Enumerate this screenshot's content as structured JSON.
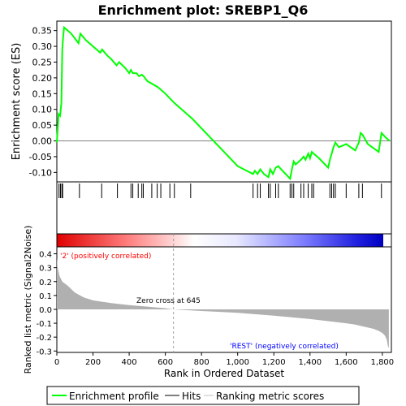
{
  "chart_data": [
    {
      "type": "line",
      "panel": "enrichment",
      "title": "Enrichment plot: SREBP1_Q6",
      "ylabel": "Enrichment score (ES)",
      "xlim": [
        0,
        1850
      ],
      "ylim": [
        -0.13,
        0.38
      ],
      "yticks": [
        "0.35",
        "0.30",
        "0.25",
        "0.20",
        "0.15",
        "0.10",
        "0.05",
        "0.00",
        "-0.05",
        "-0.10"
      ],
      "ytick_values": [
        0.35,
        0.3,
        0.25,
        0.2,
        0.15,
        0.1,
        0.05,
        0.0,
        -0.05,
        -0.1
      ],
      "series": [
        {
          "name": "Enrichment profile",
          "color": "#00ff00",
          "x": [
            0,
            10,
            18,
            25,
            30,
            35,
            40,
            60,
            80,
            100,
            120,
            130,
            160,
            200,
            240,
            250,
            280,
            300,
            330,
            345,
            380,
            400,
            410,
            420,
            440,
            455,
            470,
            480,
            500,
            560,
            600,
            650,
            700,
            750,
            1000,
            1085,
            1095,
            1110,
            1125,
            1145,
            1170,
            1180,
            1195,
            1210,
            1225,
            1240,
            1290,
            1300,
            1310,
            1320,
            1340,
            1350,
            1365,
            1375,
            1390,
            1400,
            1410,
            1420,
            1450,
            1500,
            1510,
            1520,
            1530,
            1540,
            1560,
            1600,
            1650,
            1670,
            1680,
            1690,
            1720,
            1780,
            1795,
            1820,
            1840
          ],
          "y": [
            -0.005,
            0.085,
            0.08,
            0.12,
            0.29,
            0.33,
            0.36,
            0.35,
            0.34,
            0.325,
            0.31,
            0.34,
            0.32,
            0.3,
            0.28,
            0.29,
            0.27,
            0.26,
            0.24,
            0.25,
            0.23,
            0.215,
            0.225,
            0.215,
            0.215,
            0.205,
            0.21,
            0.205,
            0.19,
            0.17,
            0.15,
            0.12,
            0.095,
            0.07,
            -0.08,
            -0.105,
            -0.095,
            -0.105,
            -0.09,
            -0.105,
            -0.115,
            -0.09,
            -0.105,
            -0.085,
            -0.08,
            -0.09,
            -0.12,
            -0.09,
            -0.065,
            -0.075,
            -0.065,
            -0.06,
            -0.05,
            -0.06,
            -0.04,
            -0.055,
            -0.035,
            -0.04,
            -0.055,
            -0.085,
            -0.06,
            -0.04,
            -0.02,
            -0.005,
            -0.02,
            -0.01,
            -0.03,
            -0.005,
            0.025,
            0.02,
            -0.01,
            -0.035,
            0.025,
            0.01,
            0.0
          ]
        }
      ]
    },
    {
      "type": "scatter",
      "panel": "hits",
      "name": "Hits",
      "x": [
        12,
        20,
        28,
        32,
        125,
        248,
        335,
        410,
        420,
        450,
        470,
        478,
        525,
        555,
        575,
        625,
        650,
        740,
        1085,
        1110,
        1125,
        1170,
        1180,
        1210,
        1225,
        1290,
        1300,
        1310,
        1350,
        1365,
        1390,
        1410,
        1420,
        1510,
        1520,
        1530,
        1540,
        1600,
        1670,
        1690,
        1795
      ]
    },
    {
      "type": "heatmap",
      "panel": "ranking-colorbar",
      "xlim": [
        0,
        1850
      ],
      "zero_cross": 645,
      "colors": [
        "#ff0000",
        "#ff9999",
        "#ffffff",
        "#9999ff",
        "#0000ff"
      ]
    },
    {
      "type": "area",
      "panel": "ranked-metric",
      "ylabel": "Ranked list metric (Signal2Noise)",
      "xlabel": "Rank in Ordered Dataset",
      "xlim": [
        0,
        1850
      ],
      "ylim": [
        -0.31,
        0.45
      ],
      "xticks": [
        "0",
        "200",
        "400",
        "600",
        "800",
        "1,000",
        "1,200",
        "1,400",
        "1,600",
        "1,800"
      ],
      "xtick_values": [
        0,
        200,
        400,
        600,
        800,
        1000,
        1200,
        1400,
        1600,
        1800
      ],
      "yticks": [
        "0.4",
        "0.3",
        "0.2",
        "0.1",
        "0.0",
        "-0.1",
        "-0.2",
        "-0.3"
      ],
      "ytick_values": [
        0.4,
        0.3,
        0.2,
        0.1,
        0.0,
        -0.1,
        -0.2,
        -0.3
      ],
      "x": [
        0,
        5,
        15,
        30,
        60,
        100,
        150,
        200,
        300,
        400,
        500,
        600,
        645,
        700,
        800,
        1000,
        1200,
        1400,
        1500,
        1600,
        1650,
        1700,
        1750,
        1780,
        1800,
        1815,
        1825,
        1830,
        1836
      ],
      "values": [
        0.37,
        0.3,
        0.24,
        0.2,
        0.17,
        0.12,
        0.085,
        0.065,
        0.045,
        0.03,
        0.02,
        0.008,
        0.0,
        -0.005,
        -0.012,
        -0.025,
        -0.045,
        -0.07,
        -0.085,
        -0.1,
        -0.11,
        -0.125,
        -0.14,
        -0.155,
        -0.17,
        -0.19,
        -0.22,
        -0.26,
        -0.28
      ],
      "annotations": {
        "positive": "'2' (positively correlated)",
        "zero_cross": "Zero cross at 645",
        "negative": "'REST' (negatively correlated)"
      }
    }
  ],
  "legend": {
    "placement": "bottom",
    "items": [
      {
        "label": "Enrichment profile",
        "color": "#00ff00"
      },
      {
        "label": "Hits",
        "color": "#000000"
      },
      {
        "label": "Ranking metric scores",
        "color": "#c0c0c0"
      }
    ]
  }
}
